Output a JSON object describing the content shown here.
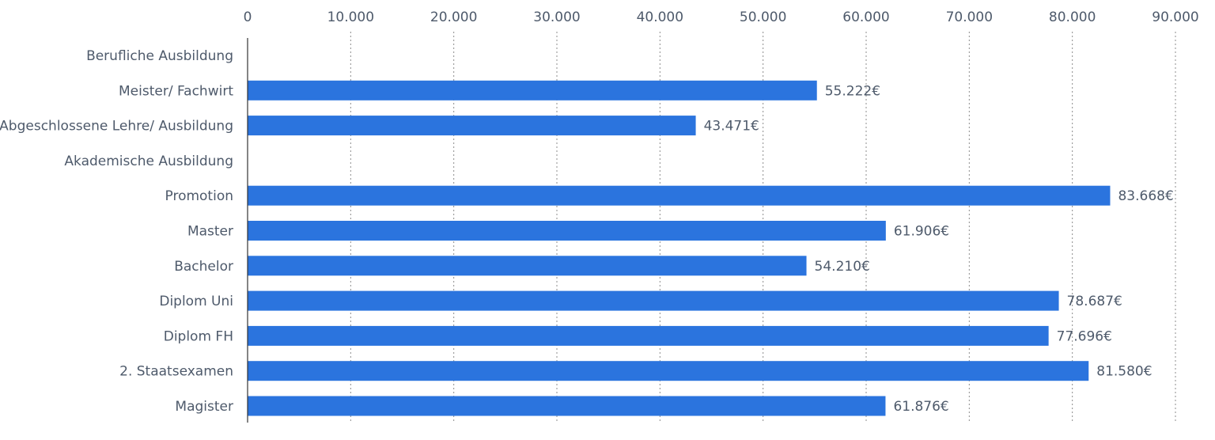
{
  "chart_data": {
    "type": "bar",
    "orientation": "horizontal",
    "title": "",
    "xlabel": "",
    "ylabel": "",
    "xlim": [
      0,
      90000
    ],
    "x_ticks": [
      0,
      10000,
      20000,
      30000,
      40000,
      50000,
      60000,
      70000,
      80000,
      90000
    ],
    "x_tick_labels": [
      "0",
      "10.000",
      "20.000",
      "30.000",
      "40.000",
      "50.000",
      "60.000",
      "70.000",
      "80.000",
      "90.000"
    ],
    "x_axis_position": "top",
    "grid": "vertical dotted",
    "legend": "none",
    "categories": [
      "Berufliche Ausbildung",
      "Meister/ Fachwirt",
      "Abgeschlossene Lehre/ Ausbildung",
      "Akademische Ausbildung",
      "Promotion",
      "Master",
      "Bachelor",
      "Diplom Uni",
      "Diplom FH",
      "2. Staatsexamen",
      "Magister"
    ],
    "values": [
      null,
      55222,
      43471,
      null,
      83668,
      61906,
      54210,
      78687,
      77696,
      81580,
      61876
    ],
    "value_labels": [
      "",
      "55.222€",
      "43.471€",
      "",
      "83.668€",
      "61.906€",
      "54.210€",
      "78.687€",
      "77.696€",
      "81.580€",
      "61.876€"
    ],
    "bar_color": "#2b74de"
  }
}
